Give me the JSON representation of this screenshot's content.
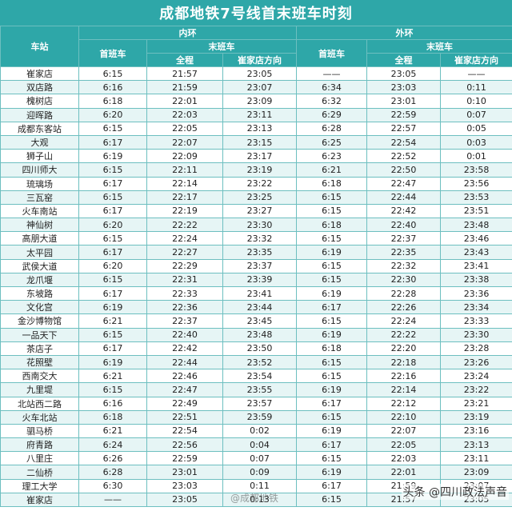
{
  "title": "成都地铁7号线首末班车时刻",
  "headers": {
    "station": "车站",
    "inner": "内环",
    "outer": "外环",
    "first": "首班车",
    "last": "末班车",
    "full": "全程",
    "to_cuijiadian": "崔家店方向"
  },
  "rows": [
    [
      "崔家店",
      "6:15",
      "21:57",
      "23:05",
      "——",
      "23:05",
      "——"
    ],
    [
      "双店路",
      "6:16",
      "21:59",
      "23:07",
      "6:34",
      "23:03",
      "0:11"
    ],
    [
      "槐树店",
      "6:18",
      "22:01",
      "23:09",
      "6:32",
      "23:01",
      "0:10"
    ],
    [
      "迎晖路",
      "6:20",
      "22:03",
      "23:11",
      "6:29",
      "22:59",
      "0:07"
    ],
    [
      "成都东客站",
      "6:15",
      "22:05",
      "23:13",
      "6:28",
      "22:57",
      "0:05"
    ],
    [
      "大观",
      "6:17",
      "22:07",
      "23:15",
      "6:25",
      "22:54",
      "0:03"
    ],
    [
      "狮子山",
      "6:19",
      "22:09",
      "23:17",
      "6:23",
      "22:52",
      "0:01"
    ],
    [
      "四川师大",
      "6:15",
      "22:11",
      "23:19",
      "6:21",
      "22:50",
      "23:58"
    ],
    [
      "琉璃场",
      "6:17",
      "22:14",
      "23:22",
      "6:18",
      "22:47",
      "23:56"
    ],
    [
      "三瓦窑",
      "6:15",
      "22:17",
      "23:25",
      "6:15",
      "22:44",
      "23:53"
    ],
    [
      "火车南站",
      "6:17",
      "22:19",
      "23:27",
      "6:15",
      "22:42",
      "23:51"
    ],
    [
      "神仙树",
      "6:20",
      "22:22",
      "23:30",
      "6:18",
      "22:40",
      "23:48"
    ],
    [
      "高朋大道",
      "6:15",
      "22:24",
      "23:32",
      "6:15",
      "22:37",
      "23:46"
    ],
    [
      "太平园",
      "6:17",
      "22:27",
      "23:35",
      "6:19",
      "22:35",
      "23:43"
    ],
    [
      "武侯大道",
      "6:20",
      "22:29",
      "23:37",
      "6:15",
      "22:32",
      "23:41"
    ],
    [
      "龙爪堰",
      "6:15",
      "22:31",
      "23:39",
      "6:15",
      "22:30",
      "23:38"
    ],
    [
      "东坡路",
      "6:17",
      "22:33",
      "23:41",
      "6:19",
      "22:28",
      "23:36"
    ],
    [
      "文化宫",
      "6:19",
      "22:36",
      "23:44",
      "6:17",
      "22:26",
      "23:34"
    ],
    [
      "金沙博物馆",
      "6:21",
      "22:37",
      "23:45",
      "6:15",
      "22:24",
      "23:33"
    ],
    [
      "一品天下",
      "6:15",
      "22:40",
      "23:48",
      "6:19",
      "22:22",
      "23:30"
    ],
    [
      "茶店子",
      "6:17",
      "22:42",
      "23:50",
      "6:18",
      "22:20",
      "23:28"
    ],
    [
      "花照壁",
      "6:19",
      "22:44",
      "23:52",
      "6:15",
      "22:18",
      "23:26"
    ],
    [
      "西南交大",
      "6:21",
      "22:46",
      "23:54",
      "6:15",
      "22:16",
      "23:24"
    ],
    [
      "九里堤",
      "6:15",
      "22:47",
      "23:55",
      "6:19",
      "22:14",
      "23:22"
    ],
    [
      "北站西二路",
      "6:16",
      "22:49",
      "23:57",
      "6:17",
      "22:12",
      "23:21"
    ],
    [
      "火车北站",
      "6:18",
      "22:51",
      "23:59",
      "6:15",
      "22:10",
      "23:19"
    ],
    [
      "驷马桥",
      "6:21",
      "22:54",
      "0:02",
      "6:19",
      "22:07",
      "23:16"
    ],
    [
      "府青路",
      "6:24",
      "22:56",
      "0:04",
      "6:17",
      "22:05",
      "23:13"
    ],
    [
      "八里庄",
      "6:26",
      "22:59",
      "0:07",
      "6:15",
      "22:03",
      "23:11"
    ],
    [
      "二仙桥",
      "6:28",
      "23:01",
      "0:09",
      "6:19",
      "22:01",
      "23:09"
    ],
    [
      "理工大学",
      "6:30",
      "23:03",
      "0:11",
      "6:17",
      "21:59",
      "23:07"
    ],
    [
      "崔家店",
      "——",
      "23:05",
      "0:13",
      "6:15",
      "21:57",
      "23:05"
    ]
  ],
  "watermarks": {
    "center": "@成都地铁",
    "right": "头条 @四川政法声音"
  }
}
